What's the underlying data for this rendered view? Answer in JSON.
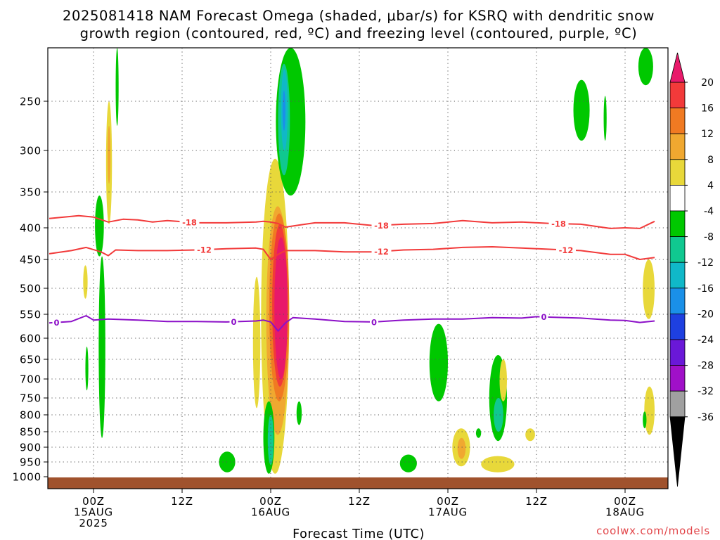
{
  "title": {
    "line1": "2025081418 NAM Forecast Omega (shaded, μbar/s) for KSRQ with dendritic snow",
    "line2": "growth region (contoured, red, ºC) and freezing level (contoured, purple, ºC)"
  },
  "credit": "coolwx.com/models",
  "colors": {
    "dgz_contour": "#f23a3a",
    "freezing_contour": "#8c10c8",
    "ground": "#a0522d",
    "grid": "#555555"
  },
  "chart_data": {
    "type": "heatmap",
    "xlabel": "Forecast Time (UTC)",
    "ylabel": "",
    "y_axis": "pressure (hPa), inverted",
    "ylim": [
      1000,
      200
    ],
    "xlim_hours": [
      0,
      82
    ],
    "grid": true,
    "y_ticks": [
      250,
      300,
      350,
      400,
      450,
      500,
      550,
      600,
      650,
      700,
      750,
      800,
      850,
      900,
      950,
      1000
    ],
    "x_ticks": [
      {
        "hour": 6,
        "lines": [
          "00Z",
          "15AUG",
          "2025"
        ]
      },
      {
        "hour": 18,
        "lines": [
          "12Z"
        ]
      },
      {
        "hour": 30,
        "lines": [
          "00Z",
          "16AUG"
        ]
      },
      {
        "hour": 42,
        "lines": [
          "12Z"
        ]
      },
      {
        "hour": 54,
        "lines": [
          "00Z",
          "17AUG"
        ]
      },
      {
        "hour": 66,
        "lines": [
          "12Z"
        ]
      },
      {
        "hour": 78,
        "lines": [
          "00Z",
          "18AUG"
        ]
      }
    ],
    "colorbar": {
      "labels": [
        "20",
        "16",
        "12",
        "8",
        "4",
        "-4",
        "-8",
        "-12",
        "-16",
        "-20",
        "-24",
        "-28",
        "-32",
        "-36"
      ],
      "bands": [
        {
          "from": 20,
          "to": 24,
          "color": "#e8196a"
        },
        {
          "from": 16,
          "to": 20,
          "color": "#f23a3a"
        },
        {
          "from": 12,
          "to": 16,
          "color": "#f07a22"
        },
        {
          "from": 8,
          "to": 12,
          "color": "#f0a830"
        },
        {
          "from": 4,
          "to": 8,
          "color": "#e8d83a"
        },
        {
          "from": -4,
          "to": 4,
          "color": "#ffffff"
        },
        {
          "from": -8,
          "to": -4,
          "color": "#00c800"
        },
        {
          "from": -12,
          "to": -8,
          "color": "#10c890"
        },
        {
          "from": -16,
          "to": -12,
          "color": "#10b8c8"
        },
        {
          "from": -20,
          "to": -16,
          "color": "#1a90e8"
        },
        {
          "from": -24,
          "to": -20,
          "color": "#1e40e0"
        },
        {
          "from": -28,
          "to": -24,
          "color": "#6a18d8"
        },
        {
          "from": -32,
          "to": -28,
          "color": "#a010c8"
        },
        {
          "from": -36,
          "to": -32,
          "color": "#a0a0a0"
        }
      ]
    },
    "contours": [
      {
        "label": "-18",
        "color": "#f23a3a",
        "label_hours": [
          19,
          45,
          69
        ],
        "points": [
          [
            0,
            387
          ],
          [
            4,
            383
          ],
          [
            6,
            385
          ],
          [
            8,
            392
          ],
          [
            10,
            388
          ],
          [
            12,
            389
          ],
          [
            14,
            392
          ],
          [
            16,
            390
          ],
          [
            20,
            393
          ],
          [
            24,
            393
          ],
          [
            28,
            392
          ],
          [
            29,
            391
          ],
          [
            30,
            392
          ],
          [
            31,
            394
          ],
          [
            32,
            399
          ],
          [
            34,
            396
          ],
          [
            36,
            393
          ],
          [
            40,
            393
          ],
          [
            44,
            397
          ],
          [
            48,
            395
          ],
          [
            52,
            394
          ],
          [
            56,
            390
          ],
          [
            60,
            393
          ],
          [
            64,
            392
          ],
          [
            68,
            394
          ],
          [
            72,
            395
          ],
          [
            76,
            401
          ],
          [
            78,
            400
          ],
          [
            80,
            401
          ],
          [
            82,
            391
          ]
        ]
      },
      {
        "label": "-12",
        "color": "#f23a3a",
        "label_hours": [
          21,
          45,
          70
        ],
        "points": [
          [
            0,
            441
          ],
          [
            3,
            436
          ],
          [
            5,
            431
          ],
          [
            7,
            438
          ],
          [
            8,
            444
          ],
          [
            9,
            435
          ],
          [
            12,
            436
          ],
          [
            16,
            436
          ],
          [
            20,
            435
          ],
          [
            24,
            433
          ],
          [
            28,
            432
          ],
          [
            29,
            434
          ],
          [
            30,
            450
          ],
          [
            31,
            442
          ],
          [
            32,
            436
          ],
          [
            36,
            436
          ],
          [
            40,
            438
          ],
          [
            44,
            438
          ],
          [
            48,
            435
          ],
          [
            52,
            434
          ],
          [
            56,
            431
          ],
          [
            60,
            430
          ],
          [
            64,
            432
          ],
          [
            68,
            434
          ],
          [
            72,
            436
          ],
          [
            76,
            442
          ],
          [
            78,
            442
          ],
          [
            80,
            450
          ],
          [
            82,
            447
          ]
        ]
      },
      {
        "label": "0",
        "color": "#8c10c8",
        "label_hours": [
          1,
          25,
          44,
          67
        ],
        "points": [
          [
            0,
            568
          ],
          [
            3,
            565
          ],
          [
            5,
            553
          ],
          [
            6,
            562
          ],
          [
            8,
            560
          ],
          [
            12,
            562
          ],
          [
            16,
            565
          ],
          [
            20,
            565
          ],
          [
            24,
            566
          ],
          [
            28,
            564
          ],
          [
            29,
            562
          ],
          [
            30,
            566
          ],
          [
            31,
            585
          ],
          [
            32,
            568
          ],
          [
            33,
            557
          ],
          [
            36,
            560
          ],
          [
            40,
            565
          ],
          [
            44,
            566
          ],
          [
            48,
            562
          ],
          [
            52,
            560
          ],
          [
            56,
            560
          ],
          [
            60,
            557
          ],
          [
            64,
            558
          ],
          [
            66,
            555
          ],
          [
            68,
            556
          ],
          [
            72,
            558
          ],
          [
            76,
            562
          ],
          [
            78,
            563
          ],
          [
            80,
            567
          ],
          [
            82,
            564
          ]
        ]
      }
    ],
    "shaded_regions": [
      {
        "omega": 4,
        "hour": [
          7.7,
          8.5
        ],
        "p": [
          250,
          395
        ]
      },
      {
        "omega": 8,
        "hour": [
          7.9,
          8.3
        ],
        "p": [
          275,
          340
        ]
      },
      {
        "omega": -4,
        "hour": [
          9.0,
          9.4
        ],
        "p": [
          200,
          275
        ]
      },
      {
        "omega": -4,
        "hour": [
          6.2,
          7.4
        ],
        "p": [
          355,
          445
        ]
      },
      {
        "omega": -4,
        "hour": [
          6.7,
          7.6
        ],
        "p": [
          445,
          870
        ]
      },
      {
        "omega": 4,
        "hour": [
          4.6,
          5.2
        ],
        "p": [
          460,
          520
        ]
      },
      {
        "omega": -4,
        "hour": [
          4.9,
          5.3
        ],
        "p": [
          620,
          730
        ]
      },
      {
        "omega": 4,
        "hour": [
          28.7,
          32.5
        ],
        "p": [
          310,
          990
        ]
      },
      {
        "omega": 8,
        "hour": [
          29.4,
          32.5
        ],
        "p": [
          370,
          860
        ]
      },
      {
        "omega": 12,
        "hour": [
          29.8,
          32.5
        ],
        "p": [
          380,
          760
        ]
      },
      {
        "omega": 16,
        "hour": [
          30.2,
          32.3
        ],
        "p": [
          395,
          720
        ]
      },
      {
        "omega": 20,
        "hour": [
          30.5,
          32.3
        ],
        "p": [
          415,
          700
        ]
      },
      {
        "omega": -4,
        "hour": [
          30.7,
          34.7
        ],
        "p": [
          200,
          355
        ]
      },
      {
        "omega": -8,
        "hour": [
          31.0,
          32.6
        ],
        "p": [
          215,
          330
        ]
      },
      {
        "omega": -12,
        "hour": [
          31.4,
          32.3
        ],
        "p": [
          220,
          300
        ]
      },
      {
        "omega": -16,
        "hour": [
          31.6,
          32.0
        ],
        "p": [
          240,
          280
        ]
      },
      {
        "omega": -4,
        "hour": [
          29.0,
          30.5
        ],
        "p": [
          760,
          990
        ]
      },
      {
        "omega": -8,
        "hour": [
          29.6,
          30.4
        ],
        "p": [
          800,
          960
        ]
      },
      {
        "omega": 4,
        "hour": [
          27.6,
          28.6
        ],
        "p": [
          480,
          780
        ]
      },
      {
        "omega": -4,
        "hour": [
          23.0,
          25.2
        ],
        "p": [
          915,
          985
        ]
      },
      {
        "omega": -4,
        "hour": [
          33.5,
          34.2
        ],
        "p": [
          760,
          830
        ]
      },
      {
        "omega": -4,
        "hour": [
          51.5,
          54.0
        ],
        "p": [
          570,
          760
        ]
      },
      {
        "omega": -4,
        "hour": [
          47.5,
          49.8
        ],
        "p": [
          925,
          985
        ]
      },
      {
        "omega": 4,
        "hour": [
          54.6,
          57.0
        ],
        "p": [
          840,
          965
        ]
      },
      {
        "omega": 8,
        "hour": [
          55.3,
          56.4
        ],
        "p": [
          870,
          940
        ]
      },
      {
        "omega": -4,
        "hour": [
          57.8,
          58.5
        ],
        "p": [
          840,
          870
        ]
      },
      {
        "omega": -4,
        "hour": [
          59.6,
          62.0
        ],
        "p": [
          640,
          880
        ]
      },
      {
        "omega": -8,
        "hour": [
          60.2,
          61.5
        ],
        "p": [
          750,
          850
        ]
      },
      {
        "omega": 4,
        "hour": [
          61.0,
          62.0
        ],
        "p": [
          650,
          760
        ]
      },
      {
        "omega": 4,
        "hour": [
          64.5,
          65.8
        ],
        "p": [
          840,
          880
        ]
      },
      {
        "omega": 4,
        "hour": [
          58.5,
          63.0
        ],
        "p": [
          930,
          985
        ]
      },
      {
        "omega": -4,
        "hour": [
          71.0,
          73.2
        ],
        "p": [
          230,
          290
        ]
      },
      {
        "omega": -4,
        "hour": [
          75.1,
          75.5
        ],
        "p": [
          245,
          290
        ]
      },
      {
        "omega": -4,
        "hour": [
          79.8,
          81.8
        ],
        "p": [
          200,
          235
        ]
      },
      {
        "omega": 4,
        "hour": [
          80.4,
          82.0
        ],
        "p": [
          450,
          560
        ]
      },
      {
        "omega": 4,
        "hour": [
          80.6,
          82.0
        ],
        "p": [
          720,
          860
        ]
      },
      {
        "omega": -4,
        "hour": [
          80.4,
          80.9
        ],
        "p": [
          790,
          840
        ]
      }
    ]
  }
}
